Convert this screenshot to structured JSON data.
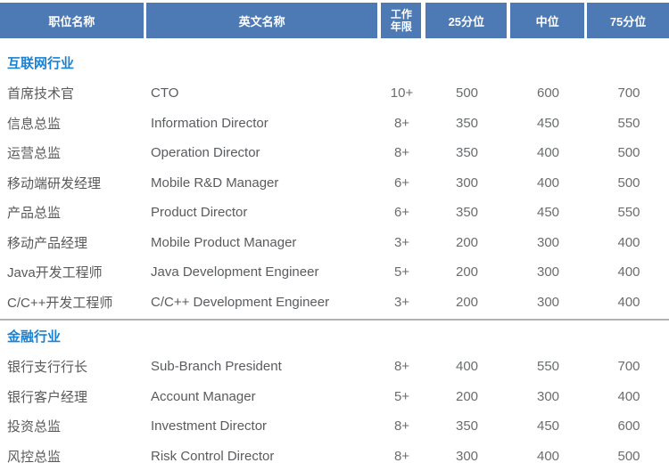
{
  "table": {
    "headers": [
      "职位名称",
      "英文名称",
      "工作年限",
      "25分位",
      "中位",
      "75分位"
    ],
    "sections": [
      {
        "title": "互联网行业",
        "rows": [
          {
            "position": "首席技术官",
            "english": "CTO",
            "years": "10+",
            "p25": "500",
            "median": "600",
            "p75": "700"
          },
          {
            "position": "信息总监",
            "english": "Information Director",
            "years": "8+",
            "p25": "350",
            "median": "450",
            "p75": "550"
          },
          {
            "position": "运营总监",
            "english": "Operation Director",
            "years": "8+",
            "p25": "350",
            "median": "400",
            "p75": "500"
          },
          {
            "position": "移动端研发经理",
            "english": "Mobile R&D Manager",
            "years": "6+",
            "p25": "300",
            "median": "400",
            "p75": "500"
          },
          {
            "position": "产品总监",
            "english": "Product Director",
            "years": "6+",
            "p25": "350",
            "median": "450",
            "p75": "550"
          },
          {
            "position": "移动产品经理",
            "english": "Mobile Product Manager",
            "years": "3+",
            "p25": "200",
            "median": "300",
            "p75": "400"
          },
          {
            "position": "Java开发工程师",
            "english": "Java Development Engineer",
            "years": "5+",
            "p25": "200",
            "median": "300",
            "p75": "400"
          },
          {
            "position": "C/C++开发工程师",
            "english": "C/C++ Development Engineer",
            "years": "3+",
            "p25": "200",
            "median": "300",
            "p75": "400"
          }
        ]
      },
      {
        "title": "金融行业",
        "rows": [
          {
            "position": "银行支行行长",
            "english": "Sub-Branch President",
            "years": "8+",
            "p25": "400",
            "median": "550",
            "p75": "700"
          },
          {
            "position": "银行客户经理",
            "english": "Account Manager",
            "years": "5+",
            "p25": "200",
            "median": "300",
            "p75": "400"
          },
          {
            "position": "投资总监",
            "english": "Investment Director",
            "years": "8+",
            "p25": "350",
            "median": "450",
            "p75": "600"
          },
          {
            "position": "风控总监",
            "english": "Risk Control Director",
            "years": "8+",
            "p25": "300",
            "median": "400",
            "p75": "500"
          }
        ]
      }
    ],
    "colors": {
      "header_background": "#4d7ab5",
      "header_text": "#ffffff",
      "section_title_text": "#1b82d2",
      "body_text": "#58595b",
      "number_text": "#6a6c6e",
      "divider": "#b2b2b5"
    }
  }
}
